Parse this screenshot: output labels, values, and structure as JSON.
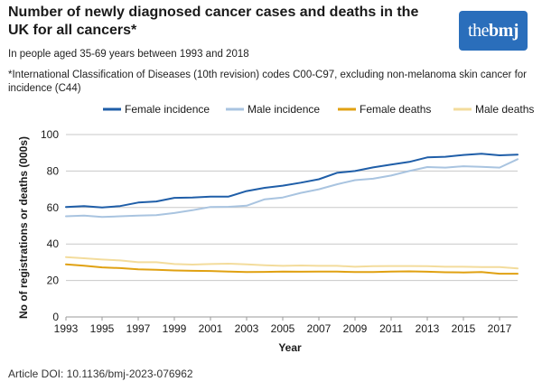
{
  "header": {
    "title": "Number of newly diagnosed cancer cases and deaths in the UK for all cancers*",
    "subtitle": "In people aged 35-69 years between 1993 and 2018",
    "note": "*International Classification of Diseases (10th revision) codes C00-C97, excluding non-melanoma skin cancer for incidence (C44)",
    "logo_prefix": "the",
    "logo_brand": "bmj"
  },
  "footer": {
    "doi": "Article DOI: 10.1136/bmj-2023-076962"
  },
  "colors": {
    "female_incidence": "#1f5ea8",
    "male_incidence": "#a9c4e0",
    "female_deaths": "#e0a112",
    "male_deaths": "#f3dc9c",
    "gridline": "#c8c8c8"
  },
  "chart_data": {
    "type": "line",
    "title": "Number of newly diagnosed cancer cases and deaths in the UK for all cancers*",
    "xlabel": "Year",
    "ylabel": "No of registrations or deaths (000s)",
    "ylim": [
      0,
      100
    ],
    "yticks": [
      0,
      20,
      40,
      60,
      80,
      100
    ],
    "xlim": [
      1993,
      2018
    ],
    "xticks": [
      1993,
      1995,
      1997,
      1999,
      2001,
      2003,
      2005,
      2007,
      2009,
      2011,
      2013,
      2015,
      2017
    ],
    "grid": true,
    "legend_position": "top",
    "x": [
      1993,
      1994,
      1995,
      1996,
      1997,
      1998,
      1999,
      2000,
      2001,
      2002,
      2003,
      2004,
      2005,
      2006,
      2007,
      2008,
      2009,
      2010,
      2011,
      2012,
      2013,
      2014,
      2015,
      2016,
      2017,
      2018
    ],
    "series": [
      {
        "name": "Female incidence",
        "color_key": "female_incidence",
        "values": [
          60.3,
          60.8,
          60.0,
          60.8,
          62.7,
          63.3,
          65.3,
          65.5,
          66.0,
          66.0,
          69.0,
          70.8,
          72.0,
          73.6,
          75.5,
          79.0,
          80.0,
          82.0,
          83.5,
          85.0,
          87.5,
          87.8,
          88.8,
          89.5,
          88.6,
          89.0
        ]
      },
      {
        "name": "Male incidence",
        "color_key": "male_incidence",
        "values": [
          55.2,
          55.6,
          54.8,
          55.2,
          55.6,
          55.8,
          57.0,
          58.5,
          60.3,
          60.4,
          61.0,
          64.5,
          65.5,
          68.0,
          70.0,
          72.7,
          75.0,
          75.8,
          77.5,
          80.0,
          82.2,
          81.9,
          82.6,
          82.3,
          81.9,
          86.5
        ]
      },
      {
        "name": "Female deaths",
        "color_key": "female_deaths",
        "values": [
          28.8,
          28.1,
          27.2,
          26.8,
          26.1,
          25.9,
          25.5,
          25.3,
          25.2,
          24.9,
          24.6,
          24.7,
          24.9,
          24.8,
          24.9,
          24.9,
          24.6,
          24.6,
          24.9,
          25.0,
          24.8,
          24.5,
          24.4,
          24.6,
          23.7,
          23.7
        ]
      },
      {
        "name": "Male deaths",
        "color_key": "male_deaths",
        "values": [
          32.8,
          32.2,
          31.5,
          31.0,
          30.0,
          30.0,
          29.0,
          28.7,
          29.0,
          29.2,
          28.8,
          28.3,
          28.0,
          28.2,
          28.0,
          28.0,
          27.5,
          27.8,
          27.9,
          27.9,
          27.8,
          27.5,
          27.5,
          27.4,
          27.4,
          26.6
        ]
      }
    ]
  }
}
